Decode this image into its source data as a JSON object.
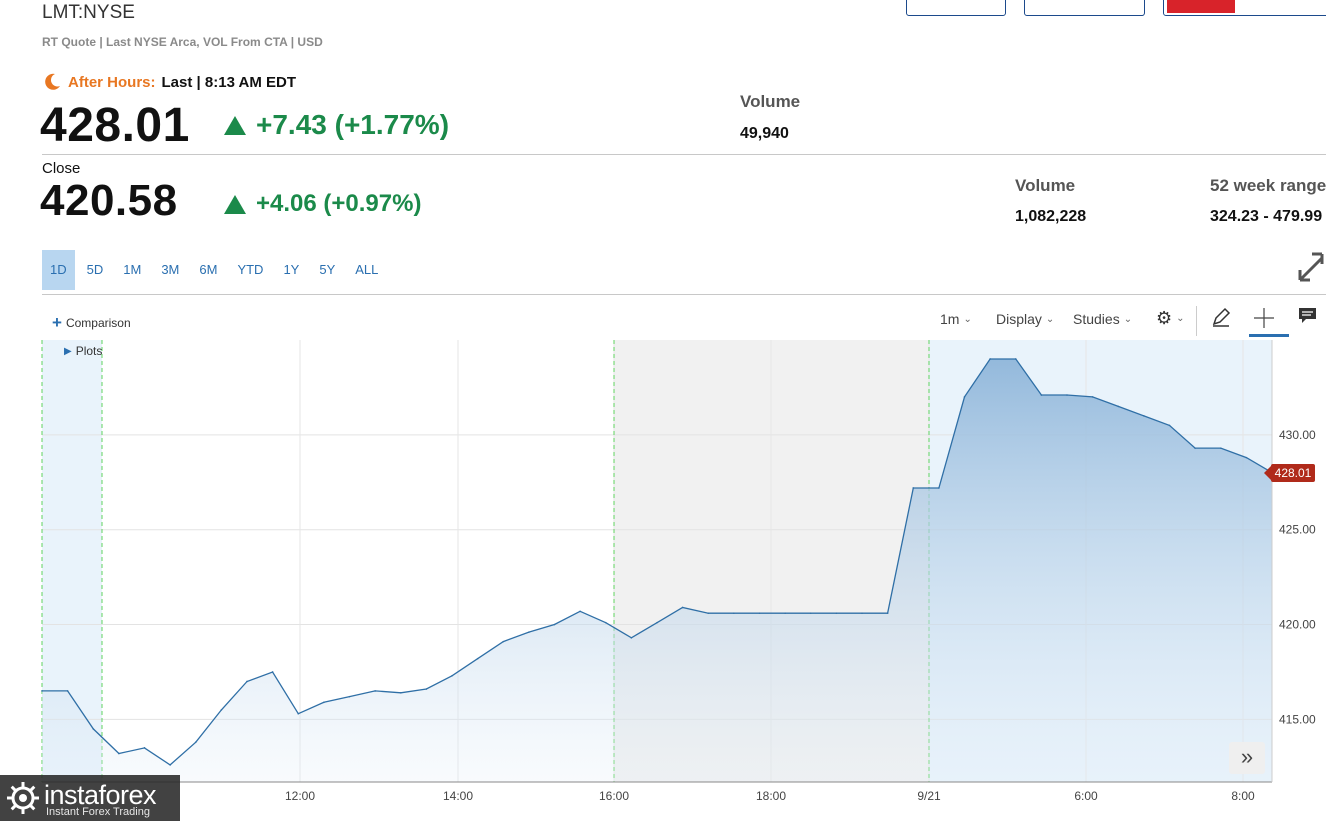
{
  "quote": {
    "symbol": "LMT:NYSE",
    "subtitle": "RT Quote | Last NYSE Arca, VOL From CTA | USD"
  },
  "after_hours": {
    "label": "After Hours:",
    "last_text": "Last | 8:13 AM EDT",
    "price": "428.01",
    "change": "+7.43 (+1.77%)",
    "volume_label": "Volume",
    "volume": "49,940"
  },
  "close": {
    "label": "Close",
    "price": "420.58",
    "change": "+4.06 (+0.97%)",
    "volume_label": "Volume",
    "volume": "1,082,228",
    "range_label": "52 week range",
    "range": "324.23 - 479.99"
  },
  "ranges": [
    {
      "label": "1D",
      "active": true
    },
    {
      "label": "5D"
    },
    {
      "label": "1M"
    },
    {
      "label": "3M"
    },
    {
      "label": "6M"
    },
    {
      "label": "YTD"
    },
    {
      "label": "1Y"
    },
    {
      "label": "5Y"
    },
    {
      "label": "ALL"
    }
  ],
  "toolbar": {
    "comparison": "Comparison",
    "plots": "Plots",
    "interval": "1m",
    "display": "Display",
    "studies": "Studies"
  },
  "colors": {
    "accent": "#2a6fb0",
    "positive": "#1b8a4a",
    "after_hours": "#e87722",
    "price_tag": "#b02a1a",
    "line": "#2f6fa6"
  },
  "chart_data": {
    "type": "area",
    "series": [
      {
        "name": "LMT",
        "x": [
          0,
          1,
          2,
          3,
          4,
          5,
          6,
          7,
          8,
          9,
          10,
          11,
          12,
          13,
          14,
          15,
          16,
          17,
          18,
          19,
          20,
          21,
          22,
          23,
          24,
          25,
          26,
          27,
          28,
          29,
          30,
          31,
          32,
          33,
          34,
          35,
          36,
          37,
          38,
          39,
          40,
          41,
          42,
          43,
          44,
          45,
          46,
          47,
          48
        ],
        "values": [
          416.5,
          416.5,
          414.5,
          413.2,
          413.5,
          412.6,
          413.8,
          415.5,
          417.0,
          417.5,
          415.3,
          415.9,
          416.2,
          416.5,
          416.4,
          416.6,
          417.3,
          418.2,
          419.1,
          419.6,
          420.0,
          420.7,
          420.1,
          419.3,
          420.1,
          420.9,
          420.6,
          420.6,
          420.6,
          420.6,
          420.6,
          420.6,
          420.6,
          420.6,
          427.2,
          427.2,
          432.0,
          434.0,
          434.0,
          432.1,
          432.1,
          432.0,
          431.5,
          431.0,
          430.5,
          429.3,
          429.3,
          428.8,
          428.01
        ]
      }
    ],
    "x_tick_labels": [
      "12:00",
      "14:00",
      "16:00",
      "18:00",
      "9/21",
      "6:00",
      "8:00"
    ],
    "y_tick_labels": [
      "415.00",
      "420.00",
      "425.00",
      "430.00"
    ],
    "ylim": [
      411.7,
      435.0
    ],
    "last_price": "428.01",
    "grid": true
  },
  "watermark": {
    "name": "instaforex",
    "tagline": "Instant Forex Trading"
  }
}
